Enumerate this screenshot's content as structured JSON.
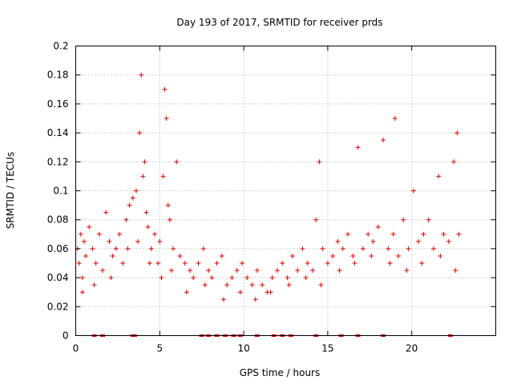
{
  "chart_data": {
    "type": "scatter",
    "title": "Day 193 of 2017, SRMTID for receiver prds",
    "xlabel": "GPS time / hours",
    "ylabel": "SRMTID / TECUs",
    "xlim": [
      0,
      25
    ],
    "ylim": [
      0,
      0.2
    ],
    "xticks": [
      0,
      5,
      10,
      15,
      20
    ],
    "xtick_labels": [
      "0",
      "5",
      "10",
      "15",
      "20"
    ],
    "yticks": [
      0,
      0.02,
      0.04,
      0.06,
      0.08,
      0.1,
      0.12,
      0.14,
      0.16,
      0.18,
      0.2
    ],
    "ytick_labels": [
      "0",
      "0.02",
      "0.04",
      "0.06",
      "0.08",
      "0.1",
      "0.12",
      "0.14",
      "0.16",
      "0.18",
      "0.2"
    ],
    "grid": true,
    "marker": "+",
    "color": "#e00000",
    "series": [
      {
        "name": "SRMTID",
        "x": [
          0.1,
          0.2,
          0.3,
          0.4,
          0.5,
          0.6,
          0.8,
          1.0,
          1.2,
          1.4,
          1.6,
          1.8,
          2.0,
          2.2,
          2.4,
          2.6,
          2.8,
          3.0,
          3.2,
          3.4,
          3.6,
          3.8,
          3.9,
          4.0,
          4.1,
          4.2,
          4.3,
          4.5,
          4.7,
          4.9,
          5.0,
          5.2,
          5.3,
          5.4,
          5.5,
          5.6,
          5.8,
          6.0,
          6.2,
          6.5,
          6.8,
          7.0,
          7.3,
          7.6,
          7.9,
          8.1,
          8.4,
          8.7,
          9.0,
          9.3,
          9.6,
          9.9,
          10.2,
          10.5,
          10.8,
          11.1,
          11.4,
          11.7,
          12.0,
          12.3,
          12.6,
          12.9,
          13.2,
          13.5,
          13.8,
          14.1,
          14.3,
          14.5,
          14.7,
          15.0,
          15.3,
          15.6,
          15.9,
          16.2,
          16.5,
          16.8,
          17.1,
          17.4,
          17.7,
          18.0,
          18.3,
          18.6,
          18.9,
          19.0,
          19.2,
          19.5,
          19.8,
          20.1,
          20.4,
          20.7,
          21.0,
          21.3,
          21.6,
          21.9,
          22.2,
          22.5,
          22.7,
          22.8,
          0.4,
          1.1,
          2.1,
          3.1,
          3.7,
          4.4,
          5.1,
          5.7,
          6.6,
          7.7,
          8.8,
          9.8,
          10.7,
          11.6,
          12.7,
          13.7,
          14.6,
          15.7,
          16.6,
          17.6,
          18.7,
          19.7,
          20.6,
          21.7,
          22.6
        ],
        "y": [
          0.06,
          0.05,
          0.07,
          0.04,
          0.065,
          0.055,
          0.075,
          0.06,
          0.05,
          0.07,
          0.045,
          0.085,
          0.065,
          0.055,
          0.06,
          0.07,
          0.05,
          0.08,
          0.09,
          0.095,
          0.1,
          0.14,
          0.18,
          0.11,
          0.12,
          0.085,
          0.075,
          0.06,
          0.07,
          0.05,
          0.065,
          0.11,
          0.17,
          0.15,
          0.09,
          0.08,
          0.06,
          0.12,
          0.055,
          0.05,
          0.045,
          0.04,
          0.05,
          0.06,
          0.045,
          0.04,
          0.05,
          0.055,
          0.035,
          0.04,
          0.045,
          0.05,
          0.04,
          0.035,
          0.045,
          0.035,
          0.03,
          0.04,
          0.045,
          0.05,
          0.04,
          0.055,
          0.045,
          0.06,
          0.05,
          0.045,
          0.08,
          0.12,
          0.06,
          0.05,
          0.055,
          0.065,
          0.06,
          0.07,
          0.055,
          0.13,
          0.06,
          0.07,
          0.065,
          0.075,
          0.135,
          0.06,
          0.07,
          0.15,
          0.055,
          0.08,
          0.06,
          0.1,
          0.065,
          0.07,
          0.08,
          0.06,
          0.11,
          0.07,
          0.065,
          0.12,
          0.14,
          0.07,
          0.03,
          0.035,
          0.04,
          0.06,
          0.065,
          0.05,
          0.04,
          0.045,
          0.03,
          0.035,
          0.025,
          0.03,
          0.025,
          0.03,
          0.035,
          0.04,
          0.035,
          0.045,
          0.05,
          0.055,
          0.05,
          0.045,
          0.05,
          0.055,
          0.045
        ],
        "zero_x": [
          1.1,
          1.6,
          3.4,
          3.5,
          7.5,
          7.9,
          8.4,
          8.9,
          9.4,
          9.8,
          10.8,
          11.8,
          12.3,
          12.8,
          14.3,
          15.8,
          16.8,
          18.3,
          22.3
        ]
      }
    ]
  }
}
